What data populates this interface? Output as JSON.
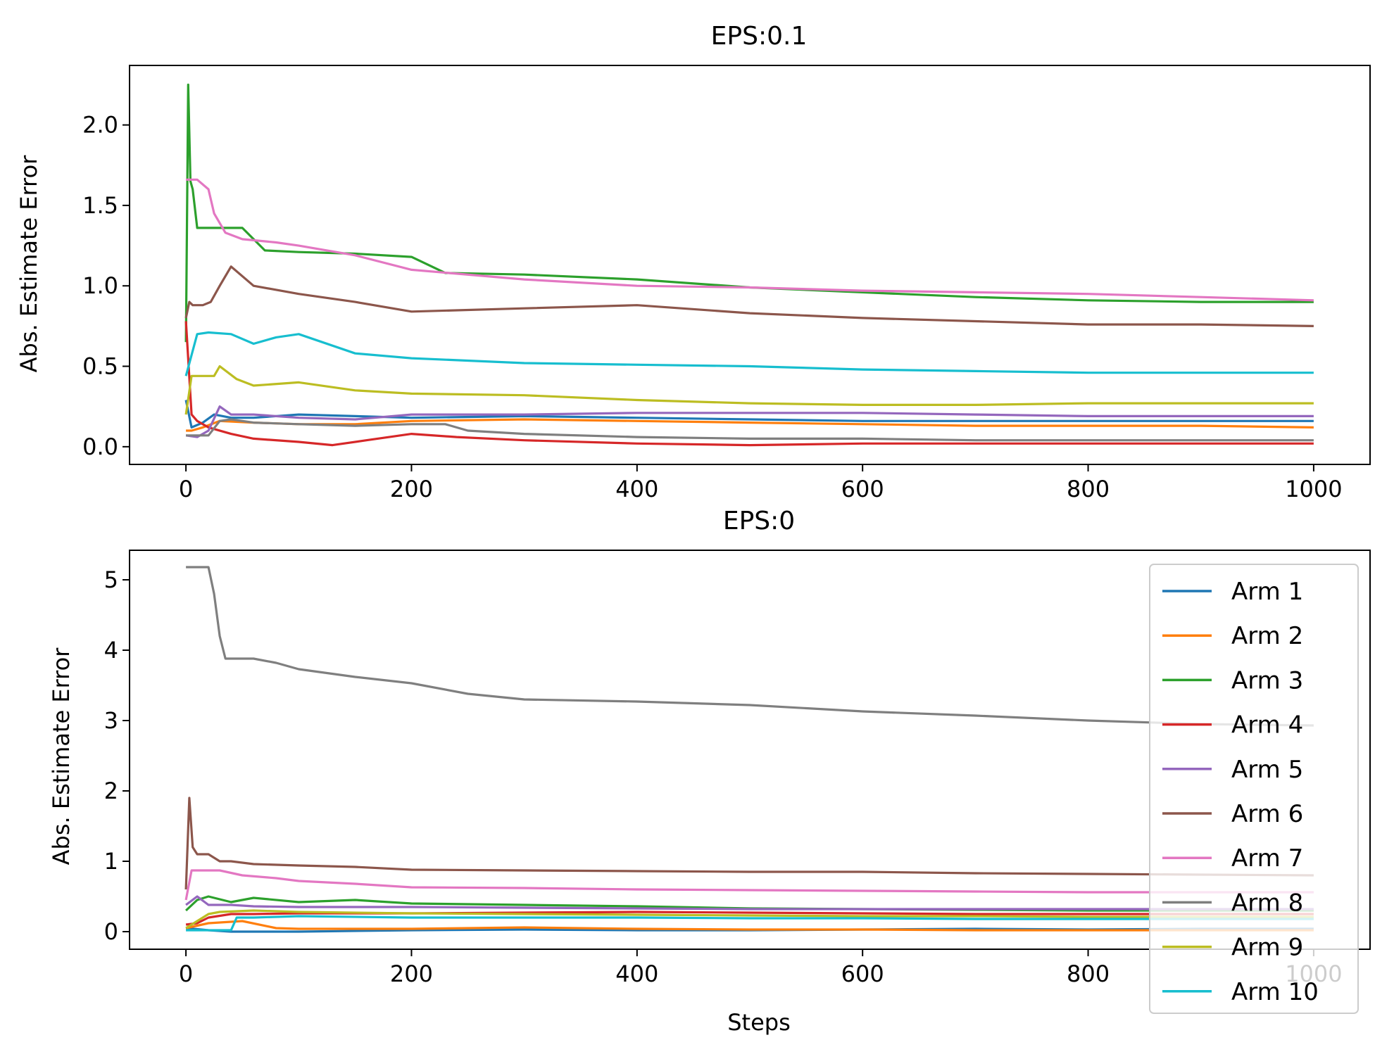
{
  "chart_data": [
    {
      "type": "line",
      "title": "EPS:0.1",
      "xlabel": "",
      "ylabel": "Abs. Estimate Error",
      "xlim": [
        -50,
        1050
      ],
      "ylim": [
        -0.11,
        2.37
      ],
      "xticks": [
        "0",
        "200",
        "400",
        "600",
        "800",
        "1000"
      ],
      "yticks": [
        "0.0",
        "0.5",
        "1.0",
        "1.5",
        "2.0"
      ],
      "grid": false,
      "legend": "none",
      "series": [
        {
          "name": "Arm 1",
          "color": "#1f77b4",
          "x": [
            0,
            5,
            15,
            25,
            40,
            60,
            100,
            150,
            200,
            300,
            400,
            500,
            600,
            700,
            800,
            900,
            1000
          ],
          "y": [
            0.29,
            0.12,
            0.15,
            0.2,
            0.18,
            0.18,
            0.2,
            0.19,
            0.18,
            0.19,
            0.18,
            0.17,
            0.16,
            0.16,
            0.16,
            0.16,
            0.16
          ]
        },
        {
          "name": "Arm 2",
          "color": "#ff7f0e",
          "x": [
            0,
            5,
            15,
            30,
            60,
            100,
            150,
            200,
            300,
            400,
            500,
            600,
            700,
            800,
            900,
            1000
          ],
          "y": [
            0.1,
            0.1,
            0.12,
            0.16,
            0.15,
            0.14,
            0.14,
            0.16,
            0.17,
            0.16,
            0.15,
            0.14,
            0.13,
            0.13,
            0.13,
            0.12
          ]
        },
        {
          "name": "Arm 3",
          "color": "#2ca02c",
          "x": [
            0,
            2,
            4,
            6,
            10,
            50,
            70,
            100,
            150,
            200,
            230,
            300,
            400,
            500,
            600,
            700,
            800,
            900,
            1000
          ],
          "y": [
            0.65,
            2.25,
            1.65,
            1.6,
            1.36,
            1.36,
            1.22,
            1.21,
            1.2,
            1.18,
            1.08,
            1.07,
            1.04,
            0.99,
            0.96,
            0.93,
            0.91,
            0.9,
            0.9
          ]
        },
        {
          "name": "Arm 4",
          "color": "#d62728",
          "x": [
            0,
            5,
            10,
            20,
            40,
            60,
            100,
            130,
            160,
            200,
            240,
            300,
            400,
            500,
            600,
            700,
            800,
            900,
            1000
          ],
          "y": [
            0.78,
            0.2,
            0.16,
            0.12,
            0.08,
            0.05,
            0.03,
            0.01,
            0.04,
            0.08,
            0.06,
            0.04,
            0.02,
            0.01,
            0.02,
            0.02,
            0.02,
            0.02,
            0.02
          ]
        },
        {
          "name": "Arm 5",
          "color": "#9467bd",
          "x": [
            0,
            10,
            20,
            30,
            40,
            60,
            100,
            150,
            200,
            300,
            400,
            500,
            600,
            700,
            800,
            900,
            1000
          ],
          "y": [
            0.07,
            0.06,
            0.1,
            0.25,
            0.2,
            0.2,
            0.18,
            0.17,
            0.2,
            0.2,
            0.21,
            0.21,
            0.21,
            0.2,
            0.19,
            0.19,
            0.19
          ]
        },
        {
          "name": "Arm 6",
          "color": "#8c564b",
          "x": [
            0,
            3,
            6,
            15,
            22,
            30,
            40,
            60,
            100,
            150,
            200,
            300,
            400,
            500,
            600,
            700,
            800,
            900,
            1000
          ],
          "y": [
            0.8,
            0.9,
            0.88,
            0.88,
            0.9,
            1.0,
            1.12,
            1.0,
            0.95,
            0.9,
            0.84,
            0.86,
            0.88,
            0.83,
            0.8,
            0.78,
            0.76,
            0.76,
            0.75
          ]
        },
        {
          "name": "Arm 7",
          "color": "#e377c2",
          "x": [
            0,
            10,
            20,
            25,
            35,
            50,
            80,
            100,
            150,
            200,
            300,
            400,
            500,
            600,
            700,
            800,
            900,
            1000
          ],
          "y": [
            1.66,
            1.66,
            1.6,
            1.45,
            1.33,
            1.29,
            1.27,
            1.25,
            1.19,
            1.1,
            1.04,
            1.0,
            0.99,
            0.97,
            0.96,
            0.95,
            0.93,
            0.91
          ]
        },
        {
          "name": "Arm 8",
          "color": "#7f7f7f",
          "x": [
            0,
            20,
            30,
            40,
            60,
            100,
            150,
            200,
            230,
            250,
            300,
            400,
            500,
            600,
            700,
            800,
            900,
            1000
          ],
          "y": [
            0.07,
            0.07,
            0.16,
            0.17,
            0.15,
            0.14,
            0.13,
            0.14,
            0.14,
            0.1,
            0.08,
            0.06,
            0.05,
            0.05,
            0.04,
            0.04,
            0.04,
            0.04
          ]
        },
        {
          "name": "Arm 9",
          "color": "#bcbd22",
          "x": [
            0,
            5,
            25,
            30,
            45,
            60,
            100,
            150,
            200,
            300,
            400,
            500,
            600,
            700,
            800,
            900,
            1000
          ],
          "y": [
            0.2,
            0.44,
            0.44,
            0.5,
            0.42,
            0.38,
            0.4,
            0.35,
            0.33,
            0.32,
            0.29,
            0.27,
            0.26,
            0.26,
            0.27,
            0.27,
            0.27
          ]
        },
        {
          "name": "Arm 10",
          "color": "#17becf",
          "x": [
            0,
            10,
            20,
            40,
            60,
            80,
            100,
            150,
            200,
            300,
            400,
            500,
            600,
            700,
            800,
            900,
            1000
          ],
          "y": [
            0.44,
            0.7,
            0.71,
            0.7,
            0.64,
            0.68,
            0.7,
            0.58,
            0.55,
            0.52,
            0.51,
            0.5,
            0.48,
            0.47,
            0.46,
            0.46,
            0.46
          ]
        }
      ]
    },
    {
      "type": "line",
      "title": "EPS:0",
      "xlabel": "Steps",
      "ylabel": "Abs. Estimate Error",
      "xlim": [
        -50,
        1050
      ],
      "ylim": [
        -0.25,
        5.42
      ],
      "xticks": [
        "0",
        "200",
        "400",
        "600",
        "800",
        "1000"
      ],
      "yticks": [
        "0",
        "1",
        "2",
        "3",
        "4",
        "5"
      ],
      "grid": false,
      "legend": "top-right",
      "series": [
        {
          "name": "Arm 1",
          "color": "#1f77b4",
          "x": [
            0,
            20,
            40,
            100,
            200,
            300,
            400,
            500,
            600,
            700,
            800,
            900,
            1000
          ],
          "y": [
            0.05,
            0.02,
            0.0,
            0.0,
            0.02,
            0.03,
            0.02,
            0.02,
            0.03,
            0.04,
            0.03,
            0.04,
            0.04
          ]
        },
        {
          "name": "Arm 2",
          "color": "#ff7f0e",
          "x": [
            0,
            20,
            50,
            80,
            100,
            200,
            300,
            400,
            500,
            600,
            700,
            800,
            900,
            1000
          ],
          "y": [
            0.05,
            0.12,
            0.15,
            0.05,
            0.04,
            0.04,
            0.06,
            0.04,
            0.03,
            0.03,
            0.02,
            0.02,
            0.02,
            0.02
          ]
        },
        {
          "name": "Arm 3",
          "color": "#2ca02c",
          "x": [
            0,
            10,
            20,
            40,
            60,
            100,
            150,
            200,
            300,
            400,
            500,
            600,
            700,
            800,
            900,
            1000
          ],
          "y": [
            0.3,
            0.45,
            0.5,
            0.42,
            0.48,
            0.42,
            0.45,
            0.4,
            0.38,
            0.36,
            0.33,
            0.32,
            0.31,
            0.3,
            0.3,
            0.3
          ]
        },
        {
          "name": "Arm 4",
          "color": "#d62728",
          "x": [
            0,
            10,
            20,
            40,
            60,
            100,
            200,
            300,
            400,
            500,
            600,
            700,
            800,
            900,
            1000
          ],
          "y": [
            0.1,
            0.12,
            0.2,
            0.25,
            0.25,
            0.26,
            0.26,
            0.27,
            0.28,
            0.27,
            0.26,
            0.25,
            0.25,
            0.25,
            0.25
          ]
        },
        {
          "name": "Arm 5",
          "color": "#9467bd",
          "x": [
            0,
            10,
            20,
            40,
            60,
            100,
            200,
            300,
            400,
            500,
            600,
            700,
            800,
            900,
            1000
          ],
          "y": [
            0.38,
            0.5,
            0.38,
            0.38,
            0.36,
            0.35,
            0.35,
            0.34,
            0.33,
            0.32,
            0.32,
            0.32,
            0.32,
            0.32,
            0.32
          ]
        },
        {
          "name": "Arm 6",
          "color": "#8c564b",
          "x": [
            0,
            3,
            6,
            10,
            20,
            30,
            40,
            60,
            100,
            150,
            200,
            300,
            400,
            500,
            600,
            700,
            800,
            900,
            1000
          ],
          "y": [
            0.6,
            1.9,
            1.2,
            1.1,
            1.1,
            1.0,
            1.0,
            0.96,
            0.94,
            0.92,
            0.88,
            0.87,
            0.86,
            0.85,
            0.85,
            0.83,
            0.82,
            0.81,
            0.8
          ]
        },
        {
          "name": "Arm 7",
          "color": "#e377c2",
          "x": [
            0,
            5,
            30,
            50,
            80,
            100,
            150,
            200,
            300,
            400,
            500,
            600,
            700,
            800,
            900,
            1000
          ],
          "y": [
            0.45,
            0.87,
            0.87,
            0.8,
            0.76,
            0.72,
            0.68,
            0.63,
            0.62,
            0.6,
            0.59,
            0.58,
            0.57,
            0.56,
            0.56,
            0.56
          ]
        },
        {
          "name": "Arm 8",
          "color": "#7f7f7f",
          "x": [
            0,
            20,
            25,
            30,
            35,
            60,
            80,
            100,
            150,
            200,
            250,
            300,
            400,
            500,
            600,
            700,
            800,
            900,
            1000
          ],
          "y": [
            5.18,
            5.18,
            4.8,
            4.2,
            3.88,
            3.88,
            3.82,
            3.73,
            3.62,
            3.53,
            3.38,
            3.3,
            3.27,
            3.22,
            3.13,
            3.07,
            3.0,
            2.95,
            2.93
          ]
        },
        {
          "name": "Arm 9",
          "color": "#bcbd22",
          "x": [
            0,
            10,
            20,
            30,
            60,
            100,
            200,
            300,
            400,
            500,
            600,
            700,
            800,
            900,
            1000
          ],
          "y": [
            0.05,
            0.15,
            0.25,
            0.28,
            0.3,
            0.28,
            0.26,
            0.25,
            0.24,
            0.23,
            0.22,
            0.22,
            0.21,
            0.21,
            0.21
          ]
        },
        {
          "name": "Arm 10",
          "color": "#17becf",
          "x": [
            0,
            20,
            40,
            45,
            60,
            100,
            200,
            300,
            400,
            500,
            600,
            700,
            800,
            900,
            1000
          ],
          "y": [
            0.02,
            0.02,
            0.02,
            0.2,
            0.2,
            0.22,
            0.2,
            0.2,
            0.2,
            0.19,
            0.19,
            0.18,
            0.18,
            0.18,
            0.18
          ]
        }
      ]
    }
  ]
}
